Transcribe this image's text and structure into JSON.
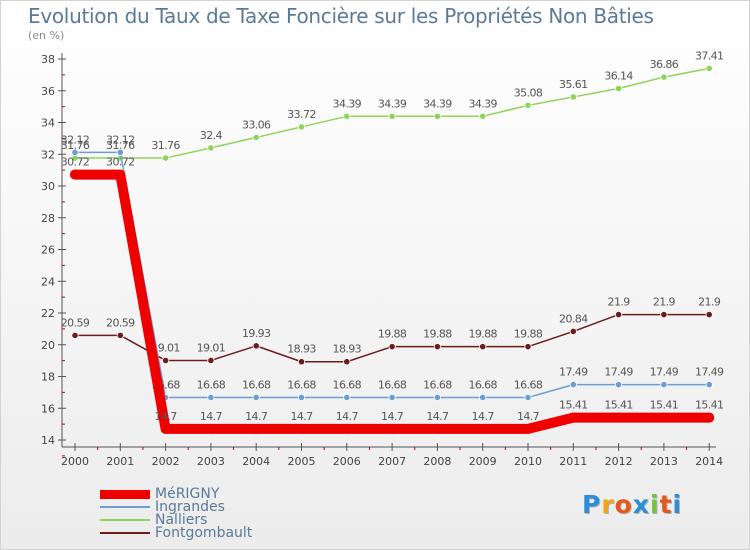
{
  "chart_data": {
    "type": "line",
    "title": "Evolution du Taux de Taxe Foncière sur les Propriétés Non Bâties",
    "ylabel": "(en %)",
    "xlabel": "",
    "ylim": [
      14,
      38
    ],
    "yticks": [
      "14",
      "16",
      "18",
      "20",
      "22",
      "24",
      "26",
      "28",
      "30",
      "32",
      "34",
      "36",
      "38"
    ],
    "categories": [
      "2000",
      "2001",
      "2002",
      "2003",
      "2004",
      "2005",
      "2006",
      "2007",
      "2008",
      "2009",
      "2010",
      "2011",
      "2012",
      "2013",
      "2014"
    ],
    "series": [
      {
        "name": "MéRIGNY",
        "color": "#ee0000",
        "values": [
          30.72,
          30.72,
          14.7,
          14.7,
          14.7,
          14.7,
          14.7,
          14.7,
          14.7,
          14.7,
          14.7,
          15.41,
          15.41,
          15.41,
          15.41
        ],
        "labels": [
          "30.72",
          "30.72",
          "14.7",
          "14.7",
          "14.7",
          "14.7",
          "14.7",
          "14.7",
          "14.7",
          "14.7",
          "14.7",
          "15.41",
          "15.41",
          "15.41",
          "15.41"
        ]
      },
      {
        "name": "Ingrandes",
        "color": "#6a9ed2",
        "values": [
          32.12,
          32.12,
          16.68,
          16.68,
          16.68,
          16.68,
          16.68,
          16.68,
          16.68,
          16.68,
          16.68,
          17.49,
          17.49,
          17.49,
          17.49
        ],
        "labels": [
          "32.12",
          "32.12",
          "16.68",
          "16.68",
          "16.68",
          "16.68",
          "16.68",
          "16.68",
          "16.68",
          "16.68",
          "16.68",
          "17.49",
          "17.49",
          "17.49",
          "17.49"
        ]
      },
      {
        "name": "Nalliers",
        "color": "#8ed45a",
        "values": [
          31.76,
          31.76,
          31.76,
          32.4,
          33.06,
          33.72,
          34.39,
          34.39,
          34.39,
          34.39,
          35.08,
          35.61,
          36.14,
          36.86,
          37.41
        ],
        "labels": [
          "31.76",
          "31.76",
          "31.76",
          "32.4",
          "33.06",
          "33.72",
          "34.39",
          "34.39",
          "34.39",
          "34.39",
          "35.08",
          "35.61",
          "36.14",
          "36.86",
          "37.41"
        ]
      },
      {
        "name": "Fontgombault",
        "color": "#6b1d1d",
        "values": [
          20.59,
          20.59,
          19.01,
          19.01,
          19.93,
          18.93,
          18.93,
          19.88,
          19.88,
          19.88,
          19.88,
          20.84,
          21.9,
          21.9,
          21.9
        ],
        "labels": [
          "20.59",
          "20.59",
          "19.01",
          "19.01",
          "19.93",
          "18.93",
          "18.93",
          "19.88",
          "19.88",
          "19.88",
          "19.88",
          "20.84",
          "21.9",
          "21.9",
          "21.9"
        ]
      }
    ],
    "legend_position": "bottom-left",
    "grid": false
  },
  "logo": {
    "text": "Proxiti",
    "colors": [
      "#2a8fd6",
      "#f2a51a",
      "#e4581c",
      "#2a8fd6",
      "#7ac143",
      "#e4581c",
      "#2a8fd6"
    ]
  }
}
